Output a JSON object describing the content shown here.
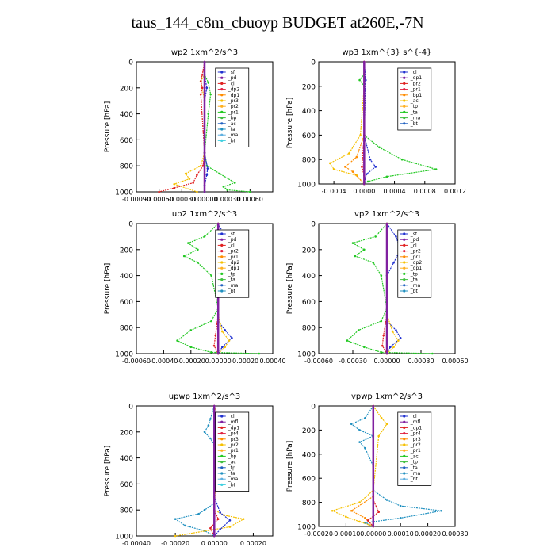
{
  "title": "taus_144_c8m_cbuoyp  BUDGET at260E,-7N",
  "chart_data": [
    {
      "type": "line",
      "title": "wp2  1xm^2/s^3",
      "ylabel": "Pressure [hPa]",
      "ylim": [
        1000,
        0
      ],
      "yticks": [
        "0",
        "200",
        "400",
        "600",
        "800",
        "1000"
      ],
      "xlim": [
        -0.0009,
        0.0009
      ],
      "xticks": [
        "-0.00090",
        "-0.00060",
        "-0.00030",
        "0.00000",
        "0.00030",
        "0.00060"
      ],
      "legend": [
        "_sf",
        "_pd",
        "_cl",
        "_dp2",
        "_dp1",
        "_pr3",
        "_pr2",
        "_pr1",
        "_bp",
        "_ac",
        "_ta",
        "_ma",
        "_bt"
      ],
      "series": [
        {
          "name": "_pr1",
          "color": "#22c822",
          "x": [
            0,
            0,
            5e-05,
            8e-05,
            5e-05,
            0,
            3e-05,
            0.0002,
            0.0004,
            0.00025,
            0.0003,
            0.0006
          ],
          "y": [
            0,
            100,
            160,
            250,
            400,
            700,
            800,
            860,
            930,
            960,
            985,
            1000
          ]
        },
        {
          "name": "_pr2",
          "color": "#f5c000",
          "x": [
            0,
            0,
            -5e-05,
            0,
            0,
            -5e-05,
            -0.00025,
            -0.0002,
            -0.0004,
            -0.0001
          ],
          "y": [
            0,
            100,
            150,
            300,
            700,
            800,
            860,
            900,
            940,
            1000
          ]
        },
        {
          "name": "_dp1",
          "color": "#e02020",
          "x": [
            0,
            -3e-05,
            -5e-05,
            -3e-05,
            -5e-05,
            0,
            -2e-05,
            -0.0001,
            -0.00015,
            -0.0004,
            -0.0006
          ],
          "y": [
            0,
            100,
            150,
            200,
            250,
            700,
            800,
            870,
            930,
            970,
            1000
          ]
        },
        {
          "name": "_pd",
          "color": "#2030d0",
          "x": [
            0,
            0,
            3e-05,
            0,
            0,
            4e-05,
            3e-05,
            0,
            0
          ],
          "y": [
            0,
            100,
            200,
            300,
            700,
            820,
            870,
            950,
            1000
          ]
        },
        {
          "name": "_bt",
          "color": "#8020a0",
          "x": [
            0,
            0
          ],
          "y": [
            0,
            1000
          ]
        }
      ]
    },
    {
      "type": "line",
      "title": "wp3  1xm^{3} s^{-4}",
      "ylabel": "Pressure [hPa]",
      "ylim": [
        1000,
        0
      ],
      "yticks": [
        "0",
        "200",
        "400",
        "600",
        "800",
        "1000"
      ],
      "xlim": [
        -0.0006,
        0.0012
      ],
      "xticks": [
        "-0.0004",
        "0.0000",
        "0.0004",
        "0.0008",
        "0.0012"
      ],
      "legend": [
        "_cl",
        "_dp1",
        "_pr2",
        "_pr1",
        "_bp1",
        "_ac",
        "_tp",
        "_ta",
        "_ma",
        "_bt"
      ],
      "series": [
        {
          "name": "_bp1",
          "color": "#22c822",
          "x": [
            0,
            0,
            -6e-05,
            0,
            0,
            0,
            0.0002,
            0.0005,
            0.00095,
            0.0003,
            5e-05,
            0
          ],
          "y": [
            0,
            100,
            150,
            200,
            300,
            600,
            700,
            800,
            880,
            940,
            980,
            1000
          ]
        },
        {
          "name": "_pr1",
          "color": "#f5c000",
          "x": [
            0,
            0,
            0,
            -5e-05,
            -0.0002,
            -0.00045,
            -0.0004,
            -0.0001,
            0
          ],
          "y": [
            0,
            100,
            200,
            600,
            750,
            830,
            880,
            930,
            1000
          ]
        },
        {
          "name": "_pr2",
          "color": "#ff8c00",
          "x": [
            0,
            0,
            -0.0001,
            -0.00025,
            -0.00015,
            0
          ],
          "y": [
            0,
            600,
            780,
            860,
            900,
            1000
          ]
        },
        {
          "name": "_tp",
          "color": "#2030d0",
          "x": [
            0,
            2e-05,
            0,
            8e-05,
            0.00015,
            3e-05,
            0
          ],
          "y": [
            0,
            150,
            600,
            800,
            860,
            920,
            1000
          ]
        },
        {
          "name": "_dp1",
          "color": "#e02020",
          "x": [
            0,
            0,
            -3e-05,
            0,
            0
          ],
          "y": [
            0,
            600,
            860,
            930,
            1000
          ]
        },
        {
          "name": "_bt",
          "color": "#8020a0",
          "x": [
            0,
            0
          ],
          "y": [
            0,
            1000
          ]
        }
      ]
    },
    {
      "type": "line",
      "title": "up2  1xm^2/s^3",
      "ylabel": "Pressure [hPa]",
      "ylim": [
        1000,
        0
      ],
      "yticks": [
        "0",
        "200",
        "400",
        "600",
        "800",
        "1000"
      ],
      "xlim": [
        -0.0006,
        0.0004
      ],
      "xticks": [
        "-0.00060",
        "-0.00040",
        "-0.00020",
        "0.00000",
        "0.00020",
        "0.00040"
      ],
      "legend": [
        "_sf",
        "_pd",
        "_cl",
        "_pr2",
        "_pr1",
        "_dp2",
        "_dp1",
        "_tp",
        "_ta",
        "_ma",
        "_bt"
      ],
      "series": [
        {
          "name": "_pr1",
          "color": "#22c822",
          "x": [
            0,
            -0.0001,
            -0.00022,
            -0.00015,
            -0.00025,
            -0.00015,
            -5e-05,
            0,
            -5e-05,
            -0.0002,
            -0.0003,
            -0.0002,
            -5e-05,
            0.0003
          ],
          "y": [
            0,
            100,
            150,
            200,
            250,
            300,
            400,
            650,
            750,
            820,
            900,
            950,
            990,
            1000
          ]
        },
        {
          "name": "_pd",
          "color": "#2030d0",
          "x": [
            0,
            5e-05,
            8e-05,
            5e-05,
            0,
            0,
            5e-05,
            0.0001,
            3e-05,
            0
          ],
          "y": [
            0,
            100,
            200,
            300,
            400,
            750,
            820,
            880,
            950,
            1000
          ]
        },
        {
          "name": "_pr2",
          "color": "#f5c000",
          "x": [
            0,
            0,
            3e-05,
            8e-05,
            5e-05,
            0
          ],
          "y": [
            0,
            700,
            830,
            900,
            950,
            1000
          ]
        },
        {
          "name": "_dp1",
          "color": "#e02020",
          "x": [
            0,
            0,
            -2e-05,
            -3e-05,
            0
          ],
          "y": [
            0,
            700,
            860,
            940,
            1000
          ]
        },
        {
          "name": "_bt",
          "color": "#8020a0",
          "x": [
            0,
            0
          ],
          "y": [
            0,
            1000
          ]
        }
      ]
    },
    {
      "type": "line",
      "title": "vp2  1xm^2/s^3",
      "ylabel": "Pressure [hPa]",
      "ylim": [
        1000,
        0
      ],
      "yticks": [
        "0",
        "200",
        "400",
        "600",
        "800",
        "1000"
      ],
      "xlim": [
        -0.0006,
        0.0006
      ],
      "xticks": [
        "-0.00060",
        "-0.00030",
        "0.00000",
        "0.00030",
        "0.00060"
      ],
      "legend": [
        "_sf",
        "_pd",
        "_cl",
        "_pr2",
        "_pr1",
        "_dp2",
        "_dp1",
        "_tp",
        "_ta",
        "_ma",
        "_bt"
      ],
      "series": [
        {
          "name": "_pr1",
          "color": "#22c822",
          "x": [
            0,
            -0.0001,
            -0.0003,
            -0.0002,
            -0.00028,
            -0.00012,
            -5e-05,
            0,
            -5e-05,
            -0.00025,
            -0.00035,
            -0.0002,
            -5e-05,
            0.0004
          ],
          "y": [
            0,
            100,
            150,
            200,
            250,
            300,
            400,
            650,
            750,
            820,
            900,
            950,
            990,
            1000
          ]
        },
        {
          "name": "_pd",
          "color": "#2030d0",
          "x": [
            0,
            8e-05,
            0.00012,
            6e-05,
            0,
            0,
            8e-05,
            0.00012,
            3e-05,
            0
          ],
          "y": [
            0,
            100,
            200,
            300,
            400,
            750,
            820,
            880,
            950,
            1000
          ]
        },
        {
          "name": "_pr2",
          "color": "#f5c000",
          "x": [
            0,
            0,
            5e-05,
            0.0001,
            6e-05,
            0
          ],
          "y": [
            0,
            700,
            830,
            900,
            950,
            1000
          ]
        },
        {
          "name": "_dp1",
          "color": "#e02020",
          "x": [
            0,
            0,
            -3e-05,
            -4e-05,
            0
          ],
          "y": [
            0,
            700,
            860,
            940,
            1000
          ]
        },
        {
          "name": "_bt",
          "color": "#8020a0",
          "x": [
            0,
            0
          ],
          "y": [
            0,
            1000
          ]
        }
      ]
    },
    {
      "type": "line",
      "title": "upwp  1xm^2/s^3",
      "ylabel": "Pressure [hPa]",
      "ylim": [
        1000,
        0
      ],
      "yticks": [
        "0",
        "200",
        "400",
        "600",
        "800",
        "1000"
      ],
      "xlim": [
        -0.0004,
        0.0003
      ],
      "xticks": [
        "-0.00040",
        "-0.00020",
        "0.00000",
        "0.00020"
      ],
      "legend": [
        "_cl",
        "_mfl",
        "_dp1",
        "_pr4",
        "_pr3",
        "_pr2",
        "_pr1",
        "_bp",
        "_ac",
        "_tp",
        "_ta",
        "_ma",
        "_bt"
      ],
      "series": [
        {
          "name": "_ta",
          "color": "#2090c0",
          "x": [
            0,
            -2e-05,
            -3e-05,
            -5e-05,
            -2e-05,
            0,
            0,
            -5e-05,
            -8e-05,
            -0.0002,
            -0.00015,
            -5e-05,
            0
          ],
          "y": [
            0,
            100,
            150,
            200,
            250,
            300,
            750,
            800,
            830,
            870,
            920,
            960,
            1000
          ]
        },
        {
          "name": "_pr1",
          "color": "#f5c000",
          "x": [
            0,
            2e-05,
            5e-05,
            2e-05,
            0,
            5e-05,
            0.00015,
            8e-05,
            -0.0002
          ],
          "y": [
            0,
            100,
            150,
            250,
            800,
            840,
            870,
            930,
            1000
          ]
        },
        {
          "name": "_tp",
          "color": "#2030d0",
          "x": [
            0,
            0,
            3e-05,
            8e-05,
            3e-05,
            0
          ],
          "y": [
            0,
            700,
            820,
            880,
            950,
            1000
          ]
        },
        {
          "name": "_dp1",
          "color": "#e02020",
          "x": [
            0,
            0,
            2e-05,
            -2e-05,
            0
          ],
          "y": [
            0,
            800,
            870,
            940,
            1000
          ]
        },
        {
          "name": "_bt",
          "color": "#8020a0",
          "x": [
            0,
            0
          ],
          "y": [
            0,
            1000
          ]
        }
      ]
    },
    {
      "type": "line",
      "title": "vpwp  1xm^2/s^3",
      "ylabel": "Pressure [hPa]",
      "ylim": [
        1000,
        0
      ],
      "yticks": [
        "0",
        "200",
        "400",
        "600",
        "800",
        "1000"
      ],
      "xlim": [
        -0.0002,
        0.0003
      ],
      "xticks": [
        "-0.00020",
        "-0.00010",
        "0.00000",
        "0.00010",
        "0.00020",
        "0.00030"
      ],
      "legend": [
        "_cl",
        "_mfl",
        "_dp1",
        "_pr4",
        "_pr3",
        "_pr2",
        "_pr1",
        "_ac",
        "_tp",
        "_ta",
        "_ma",
        "_bt"
      ],
      "series": [
        {
          "name": "_ta",
          "color": "#2090c0",
          "x": [
            0,
            -3e-05,
            -8e-05,
            -5e-05,
            0,
            -5e-05,
            -3e-05,
            0,
            0,
            5e-05,
            0.0001,
            0.00025,
            0.0001,
            -3e-05,
            0
          ],
          "y": [
            0,
            100,
            150,
            200,
            250,
            300,
            350,
            500,
            700,
            780,
            830,
            870,
            930,
            970,
            1000
          ]
        },
        {
          "name": "_pr1",
          "color": "#f5c000",
          "x": [
            0,
            3e-05,
            5e-05,
            2e-05,
            0,
            -5e-05,
            -0.00015,
            -0.0001,
            -5e-05,
            0
          ],
          "y": [
            0,
            100,
            150,
            250,
            700,
            800,
            870,
            920,
            960,
            1000
          ]
        },
        {
          "name": "_pr2",
          "color": "#ff8c00",
          "x": [
            0,
            0,
            -8e-05,
            -3e-05,
            0
          ],
          "y": [
            0,
            750,
            870,
            930,
            1000
          ]
        },
        {
          "name": "_dp1",
          "color": "#e02020",
          "x": [
            0,
            0,
            2e-05,
            -2e-05,
            0
          ],
          "y": [
            0,
            780,
            880,
            950,
            1000
          ]
        },
        {
          "name": "_bt",
          "color": "#8020a0",
          "x": [
            0,
            0
          ],
          "y": [
            0,
            1000
          ]
        }
      ]
    }
  ]
}
